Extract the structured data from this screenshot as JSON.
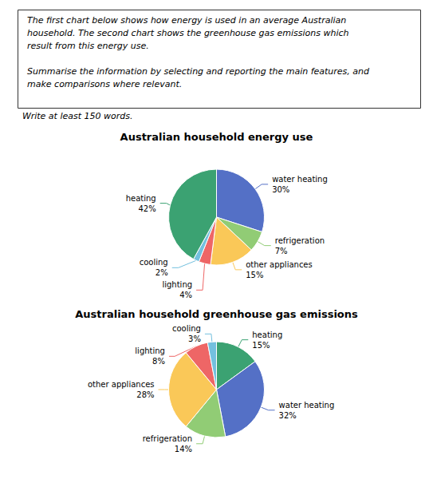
{
  "chart_data": [
    {
      "type": "pie",
      "title": "Australian household energy use",
      "annotations": [
        "The first chart below shows how energy is used in an average Australian",
        "household. The second chart shows the greenhouse gas emissions which",
        "result from this energy use.",
        "Summarise the information by selecting and reporting the main features, and",
        "make comparisons where relevant.",
        "Write at least 150 words."
      ],
      "categories": [
        "water heating",
        "refrigeration",
        "other appliances",
        "lighting",
        "cooling",
        "heating"
      ],
      "values": [
        30,
        7,
        15,
        4,
        2,
        42
      ],
      "value_labels": [
        "30%",
        "7%",
        "15%",
        "4%",
        "2%",
        "42%"
      ],
      "colors": [
        "#5470c6",
        "#91cc75",
        "#fac858",
        "#ee6666",
        "#73c0de",
        "#3ba272"
      ],
      "data_labels": true
    },
    {
      "type": "pie",
      "title": "Australian household greenhouse gas emissions",
      "categories": [
        "heating",
        "water heating",
        "refrigeration",
        "other appliances",
        "lighting",
        "cooling"
      ],
      "values": [
        15,
        32,
        14,
        28,
        8,
        3
      ],
      "value_labels": [
        "15%",
        "32%",
        "14%",
        "28%",
        "8%",
        "3%"
      ],
      "colors": [
        "#3ba272",
        "#5470c6",
        "#91cc75",
        "#fac858",
        "#ee6666",
        "#73c0de"
      ],
      "data_labels": true
    }
  ]
}
